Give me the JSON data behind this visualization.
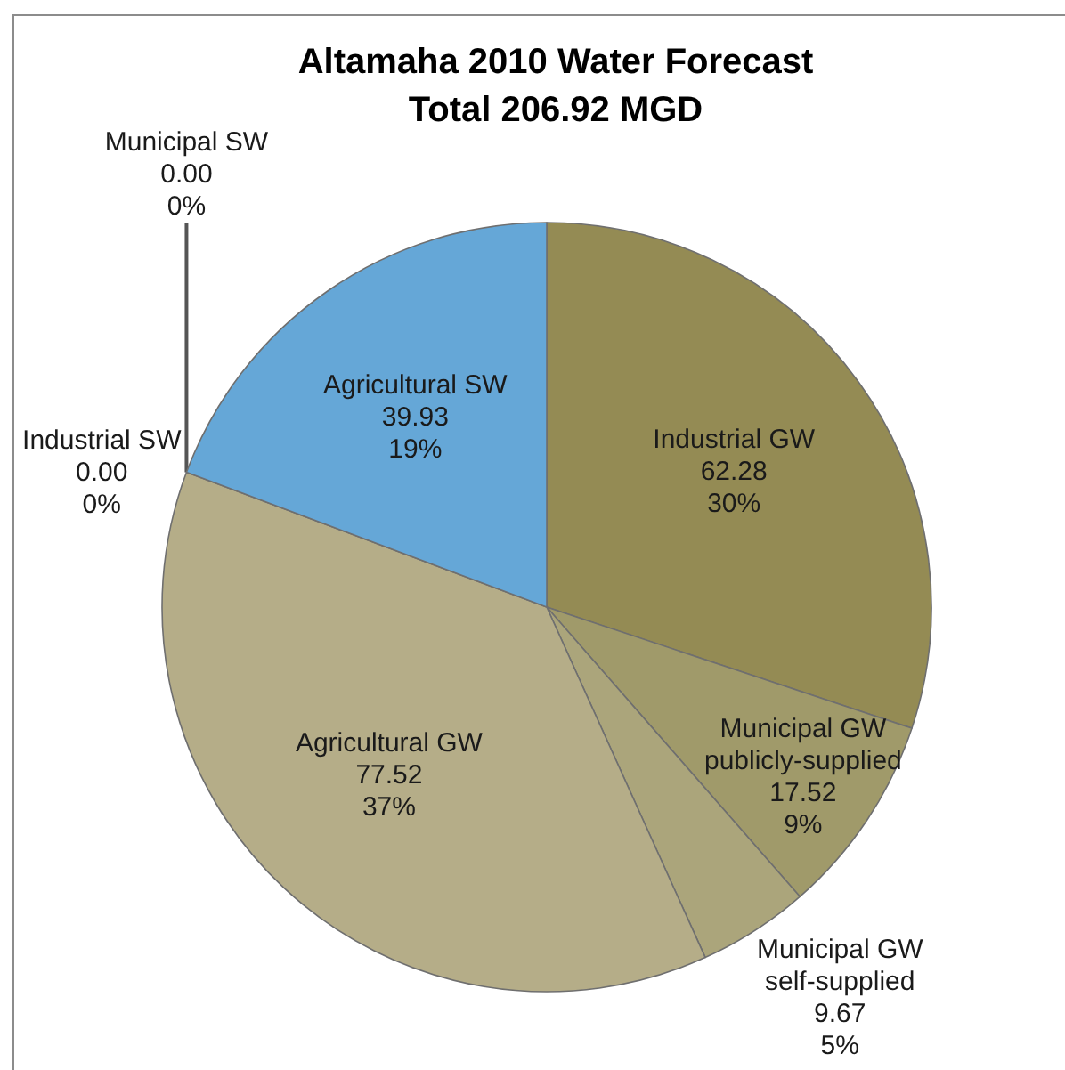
{
  "chart_data": {
    "type": "pie",
    "title": "Altamaha 2010 Water Forecast",
    "subtitle": "Total 206.92 MGD",
    "categories": [
      "Industrial GW",
      "Municipal GW publicly-supplied",
      "Municipal GW self-supplied",
      "Agricultural GW",
      "Industrial SW",
      "Municipal SW",
      "Agricultural SW"
    ],
    "values": [
      62.28,
      17.52,
      9.67,
      77.52,
      0,
      0,
      39.93
    ],
    "colors": [
      "#948b54",
      "#a09a6a",
      "#aba57b",
      "#b5ad88",
      null,
      null,
      "#65a7d7"
    ],
    "value_labels": [
      "62.28\n30%",
      "17.52\n9%",
      "9.67\n5%",
      "77.52\n37%",
      "0.00\n0%",
      "0.00\n0%",
      "39.93\n19%"
    ]
  }
}
